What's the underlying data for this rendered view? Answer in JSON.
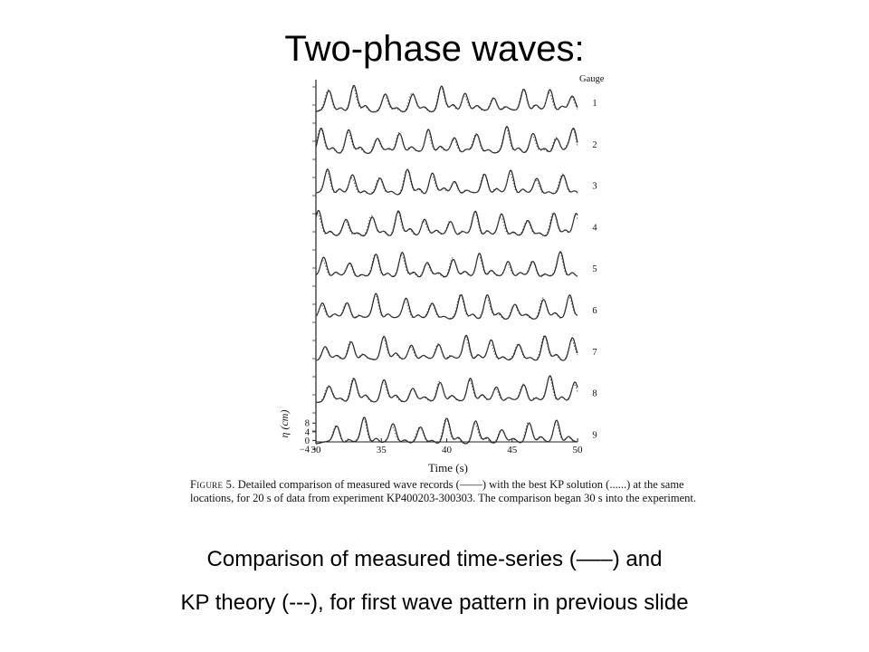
{
  "slide": {
    "title": "Two-phase waves:",
    "subtitle_line1": "Comparison of measured time-series (–––) and",
    "subtitle_line2": "KP theory (---), for first wave pattern in previous slide"
  },
  "figure": {
    "gauge_header": "Gauge",
    "gauge_labels": [
      "1",
      "2",
      "3",
      "4",
      "5",
      "6",
      "7",
      "8",
      "9"
    ],
    "caption_label": "Figure 5.",
    "caption_text": " Detailed comparison of measured wave records (——) with the best KP solution (......) at the same locations, for 20 s of data from experiment KP400203-300303. The comparison began 30 s into the experiment."
  },
  "chart_data": {
    "type": "line",
    "xlabel": "Time (s)",
    "ylabel": "η (cm)",
    "x_ticks": [
      "30",
      "35",
      "40",
      "45",
      "50"
    ],
    "y_ticks": [
      "8",
      "4",
      "0",
      "−4"
    ],
    "xlim": [
      30,
      50
    ],
    "ylim": [
      -4,
      8
    ],
    "series": [
      {
        "name": "1",
        "peaks": [
          31.0,
          32.9,
          35.3,
          37.4,
          39.6,
          41.4,
          43.6,
          45.9,
          47.9,
          49.6
        ]
      },
      {
        "name": "2",
        "peaks": [
          30.4,
          32.5,
          34.7,
          36.4,
          38.6,
          40.6,
          42.3,
          44.6,
          46.6,
          48.4,
          49.7
        ]
      },
      {
        "name": "3",
        "peaks": [
          30.9,
          32.8,
          34.9,
          37.0,
          38.9,
          40.6,
          42.9,
          44.9,
          46.9,
          48.9
        ]
      },
      {
        "name": "4",
        "peaks": [
          30.2,
          32.3,
          34.3,
          36.3,
          38.3,
          40.3,
          42.2,
          44.2,
          46.2,
          48.2,
          49.9
        ]
      },
      {
        "name": "5",
        "peaks": [
          30.6,
          32.6,
          34.6,
          36.6,
          38.5,
          40.5,
          42.5,
          44.7,
          46.6,
          48.7
        ]
      },
      {
        "name": "6",
        "peaks": [
          30.5,
          32.4,
          34.6,
          36.9,
          38.9,
          41.1,
          43.1,
          45.2,
          47.4,
          49.4
        ]
      },
      {
        "name": "7",
        "peaks": [
          30.7,
          32.7,
          35.2,
          37.3,
          39.4,
          41.5,
          43.4,
          45.5,
          47.5,
          49.6
        ]
      },
      {
        "name": "8",
        "peaks": [
          31.0,
          32.9,
          35.2,
          37.4,
          39.5,
          41.8,
          43.8,
          45.9,
          47.9,
          49.8
        ]
      },
      {
        "name": "9",
        "peaks": [
          31.6,
          33.7,
          35.9,
          38.0,
          40.0,
          42.2,
          44.2,
          46.3,
          48.4
        ]
      }
    ]
  }
}
